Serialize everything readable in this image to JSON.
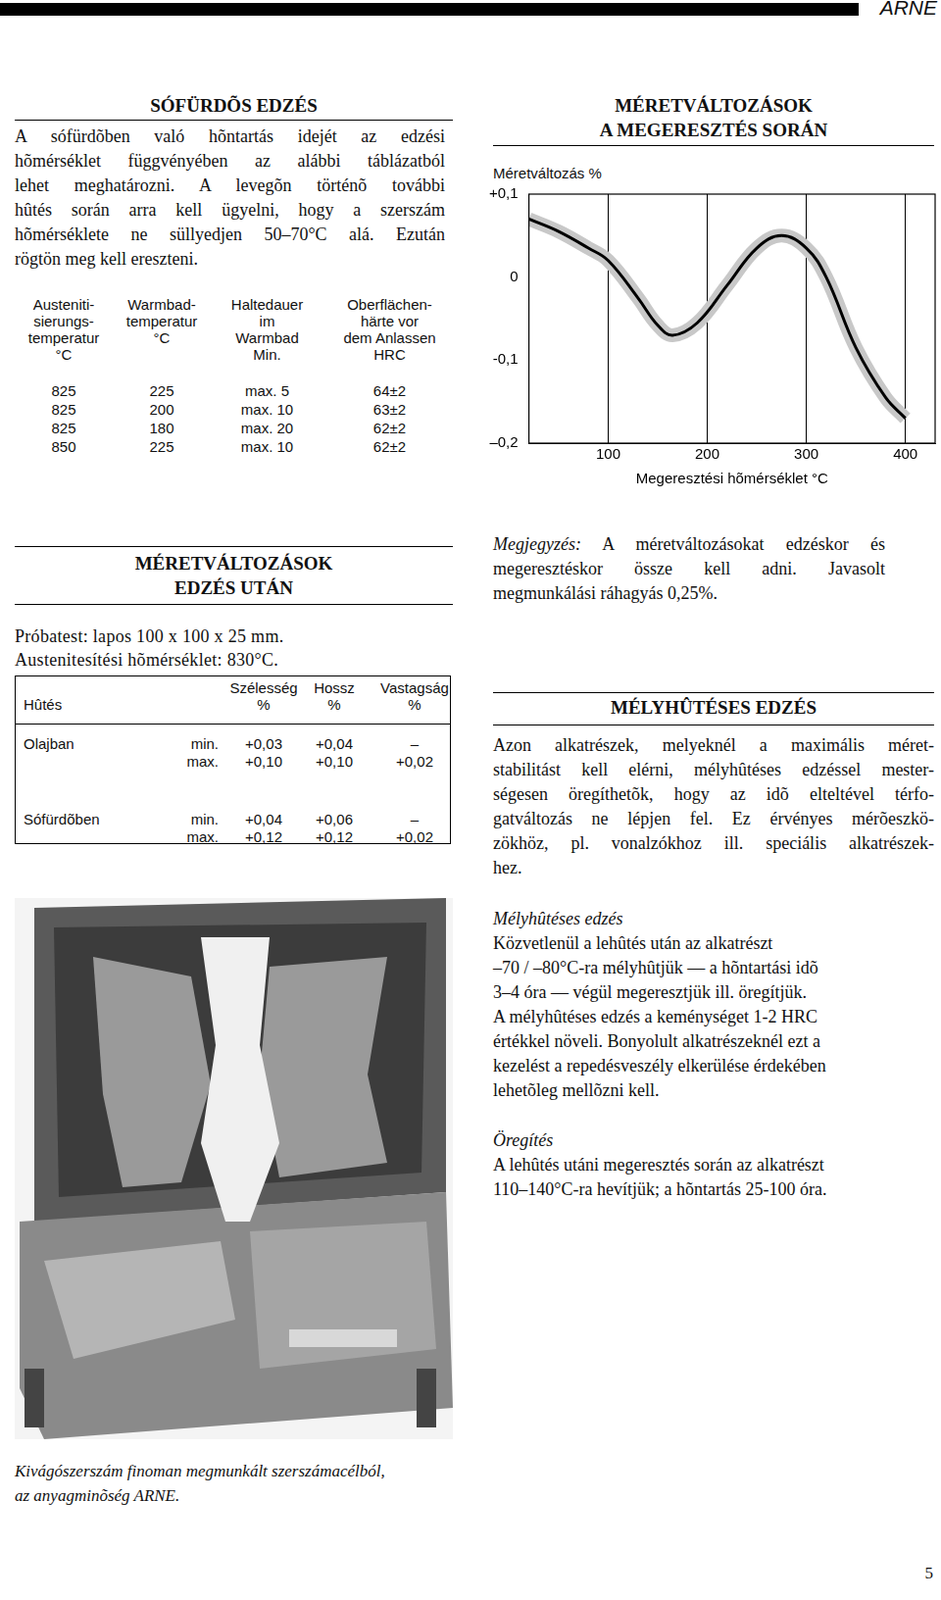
{
  "header": {
    "brand": "ARNE"
  },
  "sofurdos_edzes": {
    "title": "SÓFÜRDÕS EDZÉS",
    "lines": [
      "A sófürdõben való hõntartás idejét az edzési",
      "hõmérséklet függvényében az alábbi táblázatból",
      "lehet meghatározni. A levegõn történõ további",
      "hûtés során arra kell ügyelni, hogy a szerszám",
      "hõmérséklete ne süllyedjen 50–70°C alá. Ezután",
      "rögtön meg kell ereszteni."
    ],
    "table": {
      "columns": [
        "Austeniti-\nsierungs-\ntemperatur\n°C",
        "Warmbad-\ntemperatur\n°C",
        "Haltedauer\nim\nWarmbad\nMin.",
        "Oberflächen-\nhärte vor\ndem Anlassen\nHRC"
      ],
      "rows": [
        [
          825,
          225,
          "max. 5",
          "64±2"
        ],
        [
          825,
          200,
          "max. 10",
          "63±2"
        ],
        [
          825,
          180,
          "max. 20",
          "62±2"
        ],
        [
          850,
          225,
          "max. 10",
          "62±2"
        ]
      ]
    }
  },
  "chart_data": {
    "type": "line",
    "title": "MÉRETVÁLTOZÁSOK\nA MEGERESZTÉS SORÁN",
    "ylabel": "Méretváltozás %",
    "xlabel": "Megeresztési hõmérséklet °C",
    "x": [
      20,
      50,
      80,
      100,
      130,
      150,
      165,
      190,
      220,
      250,
      275,
      300,
      320,
      350,
      380,
      400
    ],
    "values": [
      0.07,
      0.055,
      0.035,
      0.02,
      -0.025,
      -0.058,
      -0.07,
      -0.055,
      -0.01,
      0.035,
      0.05,
      0.035,
      0.0,
      -0.085,
      -0.145,
      -0.17
    ],
    "color": "#000000",
    "xlim": [
      20,
      430
    ],
    "xticks": [
      100,
      200,
      300,
      400
    ],
    "ylim": [
      -0.2,
      0.1
    ],
    "yticks": [
      {
        "value": -0.2,
        "label": "–0,2"
      },
      {
        "value": -0.1,
        "label": "-0,1"
      },
      {
        "value": 0,
        "label": "0"
      },
      {
        "value": 0.1,
        "label": "+0,1"
      }
    ],
    "grid": true
  },
  "megjegyzes": {
    "label": "Megjegyzés:",
    "lines": [
      "A méretváltozásokat edzéskor és",
      "megeresztéskor össze kell adni. Javasolt",
      "megmunkálási ráhagyás 0,25%."
    ]
  },
  "edzes_utan": {
    "title": "MÉRETVÁLTOZÁSOK\nEDZÉS UTÁN",
    "lines": [
      "Próbatest: lapos 100 x 100 x 25 mm.",
      "Austenitesítési hõmérséklet: 830°C."
    ],
    "table": {
      "columns": [
        "Hûtés",
        "Szélesség\n%",
        "Hossz\n%",
        "Vastagság\n%"
      ],
      "rows": [
        {
          "cooling": "Olajban",
          "values": [
            [
              "min.",
              "+0,03",
              "+0,04",
              "–"
            ],
            [
              "max.",
              "+0,10",
              "+0,10",
              "+0,02"
            ]
          ]
        },
        {
          "cooling": "Sófürdõben",
          "values": [
            [
              "min.",
              "+0,04",
              "+0,06",
              "–"
            ],
            [
              "max.",
              "+0,12",
              "+0,12",
              "+0,02"
            ]
          ]
        }
      ]
    }
  },
  "melyhutes": {
    "title": "MÉLYHÛTÉSES EDZÉS",
    "lines": [
      "Azon alkatrészek, melyeknél a maximális méret-",
      "stabilitást kell elérni, mélyhûtéses edzéssel mester-",
      "ségesen öregíthetõk, hogy az idõ elteltével térfo-",
      "gatváltozás ne lépjen fel. Ez érvényes mérõeszkö-",
      "zökhöz, pl. vonalzókhoz ill. speciális alkatrészek-",
      "hez."
    ],
    "subsections": [
      {
        "title": "Mélyhûtéses edzés",
        "lines": [
          "Közvetlenül a lehûtés után az alkatrészt",
          "–70 / –80°C-ra mélyhûtjük — a hõntartási idõ",
          "3–4 óra — végül megeresztjük ill. öregítjük.",
          "A mélyhûtéses edzés a keménységet 1-2 HRC",
          "értékkel növeli. Bonyolult alkatrészeknél ezt a",
          "kezelést a repedésveszély elkerülése érdekében",
          "lehetõleg mellõzni kell."
        ]
      },
      {
        "title": "Öregítés",
        "lines": [
          "A lehûtés utáni megeresztés során az alkatrészt",
          "110–140°C-ra hevítjük; a hõntartás 25-100 óra."
        ]
      }
    ]
  },
  "photo": {
    "caption": [
      "Kivágószerszám finoman megmunkált szerszámacélból,",
      "az anyagminõség ARNE."
    ]
  },
  "page_number": 5
}
